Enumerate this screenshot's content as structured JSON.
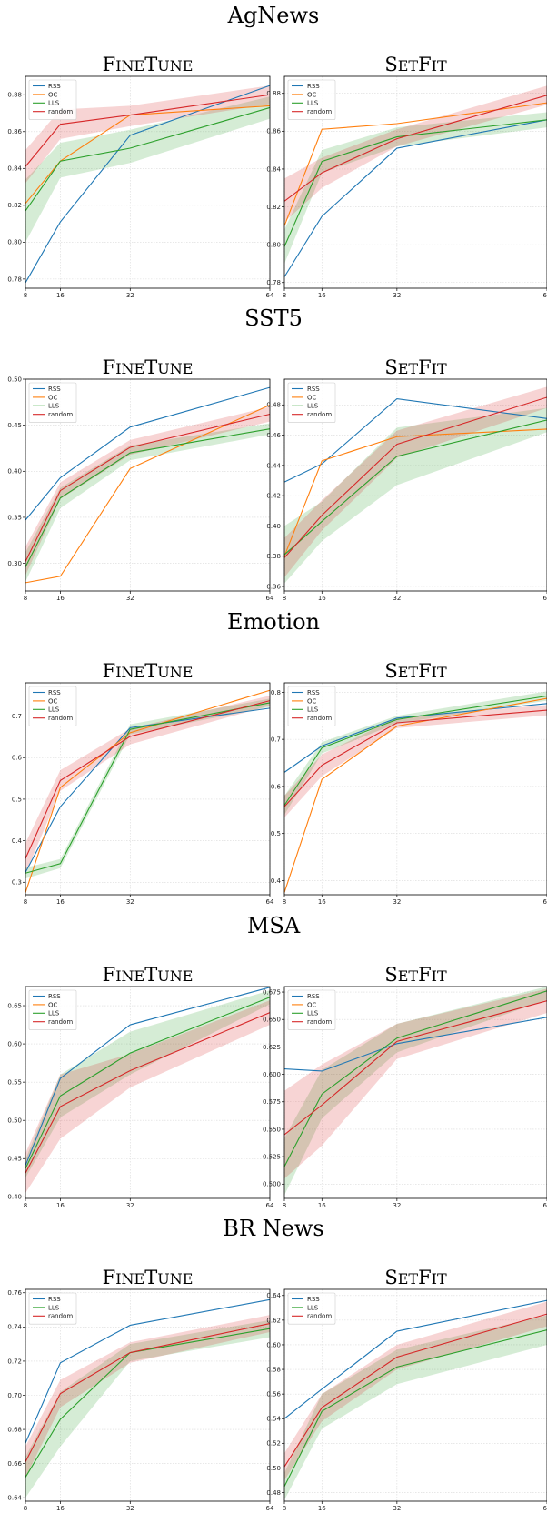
{
  "colors": {
    "RSS": "#1f77b4",
    "OC": "#ff7f0e",
    "LLS": "#2ca02c",
    "random": "#d62728"
  },
  "chart_data": [
    {
      "type": "line",
      "dataset": "AgNews",
      "title": "FineTune",
      "x": [
        8,
        16,
        32,
        64
      ],
      "ylim": [
        0.775,
        0.89
      ],
      "yticks": [
        0.78,
        0.8,
        0.82,
        0.84,
        0.86,
        0.88
      ],
      "xlim": [
        8,
        64
      ],
      "grid": true,
      "legend": "top-left",
      "series": [
        {
          "name": "RSS",
          "values": [
            0.778,
            0.811,
            0.858,
            0.885
          ]
        },
        {
          "name": "OC",
          "values": [
            0.821,
            0.844,
            0.869,
            0.874
          ]
        },
        {
          "name": "LLS",
          "values": [
            0.817,
            0.844,
            0.851,
            0.873
          ],
          "band": [
            [
              0.8,
              0.834
            ],
            [
              0.835,
              0.854
            ],
            [
              0.843,
              0.861
            ],
            [
              0.867,
              0.879
            ]
          ]
        },
        {
          "name": "random",
          "values": [
            0.841,
            0.864,
            0.869,
            0.88
          ],
          "band": [
            [
              0.832,
              0.85
            ],
            [
              0.856,
              0.872
            ],
            [
              0.863,
              0.874
            ],
            [
              0.875,
              0.885
            ]
          ]
        }
      ]
    },
    {
      "type": "line",
      "dataset": "AgNews",
      "title": "SetFit",
      "x": [
        8,
        16,
        32,
        64
      ],
      "ylim": [
        0.777,
        0.889
      ],
      "yticks": [
        0.78,
        0.8,
        0.82,
        0.84,
        0.86,
        0.88
      ],
      "xlim": [
        8,
        64
      ],
      "grid": true,
      "legend": "top-left",
      "series": [
        {
          "name": "RSS",
          "values": [
            0.783,
            0.815,
            0.851,
            0.866
          ]
        },
        {
          "name": "OC",
          "values": [
            0.81,
            0.861,
            0.864,
            0.875
          ]
        },
        {
          "name": "LLS",
          "values": [
            0.799,
            0.844,
            0.857,
            0.866
          ],
          "band": [
            [
              0.79,
              0.808
            ],
            [
              0.838,
              0.85
            ],
            [
              0.852,
              0.862
            ],
            [
              0.862,
              0.87
            ]
          ]
        },
        {
          "name": "random",
          "values": [
            0.823,
            0.838,
            0.856,
            0.879
          ],
          "band": [
            [
              0.812,
              0.835
            ],
            [
              0.83,
              0.846
            ],
            [
              0.852,
              0.861
            ],
            [
              0.874,
              0.884
            ]
          ]
        }
      ]
    },
    {
      "type": "line",
      "dataset": "SST5",
      "title": "FineTune",
      "x": [
        8,
        16,
        32,
        64
      ],
      "ylim": [
        0.27,
        0.5
      ],
      "yticks": [
        0.3,
        0.35,
        0.4,
        0.45,
        0.5
      ],
      "xlim": [
        8,
        64
      ],
      "grid": true,
      "legend": "top-left",
      "series": [
        {
          "name": "RSS",
          "values": [
            0.347,
            0.393,
            0.448,
            0.491
          ]
        },
        {
          "name": "OC",
          "values": [
            0.279,
            0.286,
            0.403,
            0.472
          ]
        },
        {
          "name": "LLS",
          "values": [
            0.296,
            0.371,
            0.42,
            0.446
          ],
          "band": [
            [
              0.28,
              0.312
            ],
            [
              0.36,
              0.382
            ],
            [
              0.412,
              0.428
            ],
            [
              0.44,
              0.452
            ]
          ]
        },
        {
          "name": "random",
          "values": [
            0.302,
            0.379,
            0.426,
            0.462
          ],
          "band": [
            [
              0.287,
              0.318
            ],
            [
              0.37,
              0.388
            ],
            [
              0.418,
              0.434
            ],
            [
              0.454,
              0.47
            ]
          ]
        }
      ]
    },
    {
      "type": "line",
      "dataset": "SST5",
      "title": "SetFit",
      "x": [
        8,
        16,
        32,
        64
      ],
      "ylim": [
        0.357,
        0.497
      ],
      "yticks": [
        0.36,
        0.38,
        0.4,
        0.42,
        0.44,
        0.46,
        0.48
      ],
      "xlim": [
        8,
        64
      ],
      "grid": true,
      "legend": "top-left",
      "series": [
        {
          "name": "RSS",
          "values": [
            0.429,
            0.441,
            0.484,
            0.471
          ]
        },
        {
          "name": "OC",
          "values": [
            0.38,
            0.443,
            0.459,
            0.464
          ]
        },
        {
          "name": "LLS",
          "values": [
            0.381,
            0.403,
            0.446,
            0.47
          ],
          "band": [
            [
              0.362,
              0.4
            ],
            [
              0.39,
              0.416
            ],
            [
              0.427,
              0.465
            ],
            [
              0.462,
              0.478
            ]
          ]
        },
        {
          "name": "random",
          "values": [
            0.379,
            0.407,
            0.454,
            0.485
          ],
          "band": [
            [
              0.366,
              0.392
            ],
            [
              0.397,
              0.417
            ],
            [
              0.445,
              0.463
            ],
            [
              0.478,
              0.492
            ]
          ]
        }
      ]
    },
    {
      "type": "line",
      "dataset": "Emotion",
      "title": "FineTune",
      "x": [
        8,
        16,
        32,
        64
      ],
      "ylim": [
        0.27,
        0.78
      ],
      "yticks": [
        0.3,
        0.4,
        0.5,
        0.6,
        0.7
      ],
      "xlim": [
        8,
        64
      ],
      "grid": true,
      "legend": "top-left",
      "series": [
        {
          "name": "RSS",
          "values": [
            0.324,
            0.482,
            0.672,
            0.719
          ]
        },
        {
          "name": "OC",
          "values": [
            0.275,
            0.528,
            0.66,
            0.762
          ]
        },
        {
          "name": "LLS",
          "values": [
            0.322,
            0.345,
            0.668,
            0.732
          ],
          "band": [
            [
              0.309,
              0.335
            ],
            [
              0.334,
              0.356
            ],
            [
              0.656,
              0.68
            ],
            [
              0.722,
              0.742
            ]
          ]
        },
        {
          "name": "random",
          "values": [
            0.357,
            0.545,
            0.651,
            0.737
          ],
          "band": [
            [
              0.32,
              0.394
            ],
            [
              0.52,
              0.57
            ],
            [
              0.632,
              0.67
            ],
            [
              0.725,
              0.749
            ]
          ]
        }
      ]
    },
    {
      "type": "line",
      "dataset": "Emotion",
      "title": "SetFit",
      "x": [
        8,
        16,
        32,
        64
      ],
      "ylim": [
        0.37,
        0.82
      ],
      "yticks": [
        0.4,
        0.5,
        0.6,
        0.7,
        0.8
      ],
      "xlim": [
        8,
        64
      ],
      "grid": true,
      "legend": "top-left",
      "series": [
        {
          "name": "RSS",
          "values": [
            0.63,
            0.686,
            0.745,
            0.776
          ]
        },
        {
          "name": "OC",
          "values": [
            0.375,
            0.615,
            0.728,
            0.787
          ]
        },
        {
          "name": "LLS",
          "values": [
            0.56,
            0.682,
            0.742,
            0.792
          ],
          "band": [
            [
              0.54,
              0.58
            ],
            [
              0.67,
              0.694
            ],
            [
              0.734,
              0.75
            ],
            [
              0.782,
              0.802
            ]
          ]
        },
        {
          "name": "random",
          "values": [
            0.557,
            0.645,
            0.735,
            0.762
          ],
          "band": [
            [
              0.534,
              0.58
            ],
            [
              0.622,
              0.668
            ],
            [
              0.724,
              0.746
            ],
            [
              0.751,
              0.773
            ]
          ]
        }
      ]
    },
    {
      "type": "line",
      "dataset": "MSA",
      "title": "FineTune",
      "x": [
        8,
        16,
        32,
        64
      ],
      "ylim": [
        0.398,
        0.675
      ],
      "yticks": [
        0.4,
        0.45,
        0.5,
        0.55,
        0.6,
        0.65
      ],
      "xlim": [
        8,
        64
      ],
      "grid": true,
      "legend": "top-left",
      "series": [
        {
          "name": "RSS",
          "values": [
            0.441,
            0.555,
            0.625,
            0.674
          ]
        },
        {
          "name": "LLS",
          "values": [
            0.437,
            0.532,
            0.588,
            0.661
          ],
          "band": [
            [
              0.425,
              0.449
            ],
            [
              0.504,
              0.56
            ],
            [
              0.56,
              0.616
            ],
            [
              0.652,
              0.67
            ]
          ]
        },
        {
          "name": "random",
          "values": [
            0.431,
            0.518,
            0.565,
            0.641
          ],
          "band": [
            [
              0.405,
              0.457
            ],
            [
              0.476,
              0.56
            ],
            [
              0.543,
              0.587
            ],
            [
              0.625,
              0.657
            ]
          ]
        }
      ],
      "legend_names": [
        "RSS",
        "OC",
        "LLS",
        "random"
      ]
    },
    {
      "type": "line",
      "dataset": "MSA",
      "title": "SetFit",
      "x": [
        8,
        16,
        32,
        64
      ],
      "ylim": [
        0.487,
        0.68
      ],
      "yticks": [
        0.5,
        0.525,
        0.55,
        0.575,
        0.6,
        0.625,
        0.65,
        0.675
      ],
      "xlim": [
        8,
        64
      ],
      "grid": true,
      "legend": "top-left",
      "series": [
        {
          "name": "RSS",
          "values": [
            0.605,
            0.603,
            0.628,
            0.652
          ]
        },
        {
          "name": "LLS",
          "values": [
            0.516,
            0.582,
            0.633,
            0.676
          ],
          "band": [
            [
              0.49,
              0.542
            ],
            [
              0.56,
              0.604
            ],
            [
              0.62,
              0.646
            ],
            [
              0.668,
              0.68
            ]
          ]
        },
        {
          "name": "random",
          "values": [
            0.545,
            0.572,
            0.63,
            0.667
          ],
          "band": [
            [
              0.505,
              0.585
            ],
            [
              0.535,
              0.609
            ],
            [
              0.614,
              0.646
            ],
            [
              0.656,
              0.678
            ]
          ]
        }
      ],
      "legend_names": [
        "RSS",
        "OC",
        "LLS",
        "random"
      ]
    },
    {
      "type": "line",
      "dataset": "BR News",
      "title": "FineTune",
      "x": [
        8,
        16,
        32,
        64
      ],
      "ylim": [
        0.638,
        0.762
      ],
      "yticks": [
        0.64,
        0.66,
        0.68,
        0.7,
        0.72,
        0.74,
        0.76
      ],
      "xlim": [
        8,
        64
      ],
      "grid": true,
      "legend": "top-left",
      "series": [
        {
          "name": "RSS",
          "values": [
            0.672,
            0.719,
            0.741,
            0.756
          ]
        },
        {
          "name": "LLS",
          "values": [
            0.652,
            0.686,
            0.725,
            0.739
          ],
          "band": [
            [
              0.64,
              0.664
            ],
            [
              0.67,
              0.702
            ],
            [
              0.72,
              0.73
            ],
            [
              0.734,
              0.744
            ]
          ]
        },
        {
          "name": "random",
          "values": [
            0.661,
            0.701,
            0.725,
            0.742
          ],
          "band": [
            [
              0.652,
              0.67
            ],
            [
              0.693,
              0.709
            ],
            [
              0.719,
              0.731
            ],
            [
              0.737,
              0.747
            ]
          ]
        }
      ]
    },
    {
      "type": "line",
      "dataset": "BR News",
      "title": "SetFit",
      "x": [
        8,
        16,
        32,
        64
      ],
      "ylim": [
        0.473,
        0.645
      ],
      "yticks": [
        0.48,
        0.5,
        0.52,
        0.54,
        0.56,
        0.58,
        0.6,
        0.62,
        0.64
      ],
      "xlim": [
        8,
        64
      ],
      "grid": true,
      "legend": "top-left",
      "series": [
        {
          "name": "RSS",
          "values": [
            0.54,
            0.564,
            0.611,
            0.636
          ]
        },
        {
          "name": "LLS",
          "values": [
            0.485,
            0.546,
            0.582,
            0.612
          ],
          "band": [
            [
              0.474,
              0.496
            ],
            [
              0.532,
              0.56
            ],
            [
              0.568,
              0.596
            ],
            [
              0.6,
              0.624
            ]
          ]
        },
        {
          "name": "random",
          "values": [
            0.501,
            0.549,
            0.59,
            0.625
          ],
          "band": [
            [
              0.49,
              0.512
            ],
            [
              0.538,
              0.56
            ],
            [
              0.58,
              0.6
            ],
            [
              0.615,
              0.635
            ]
          ]
        }
      ]
    }
  ]
}
